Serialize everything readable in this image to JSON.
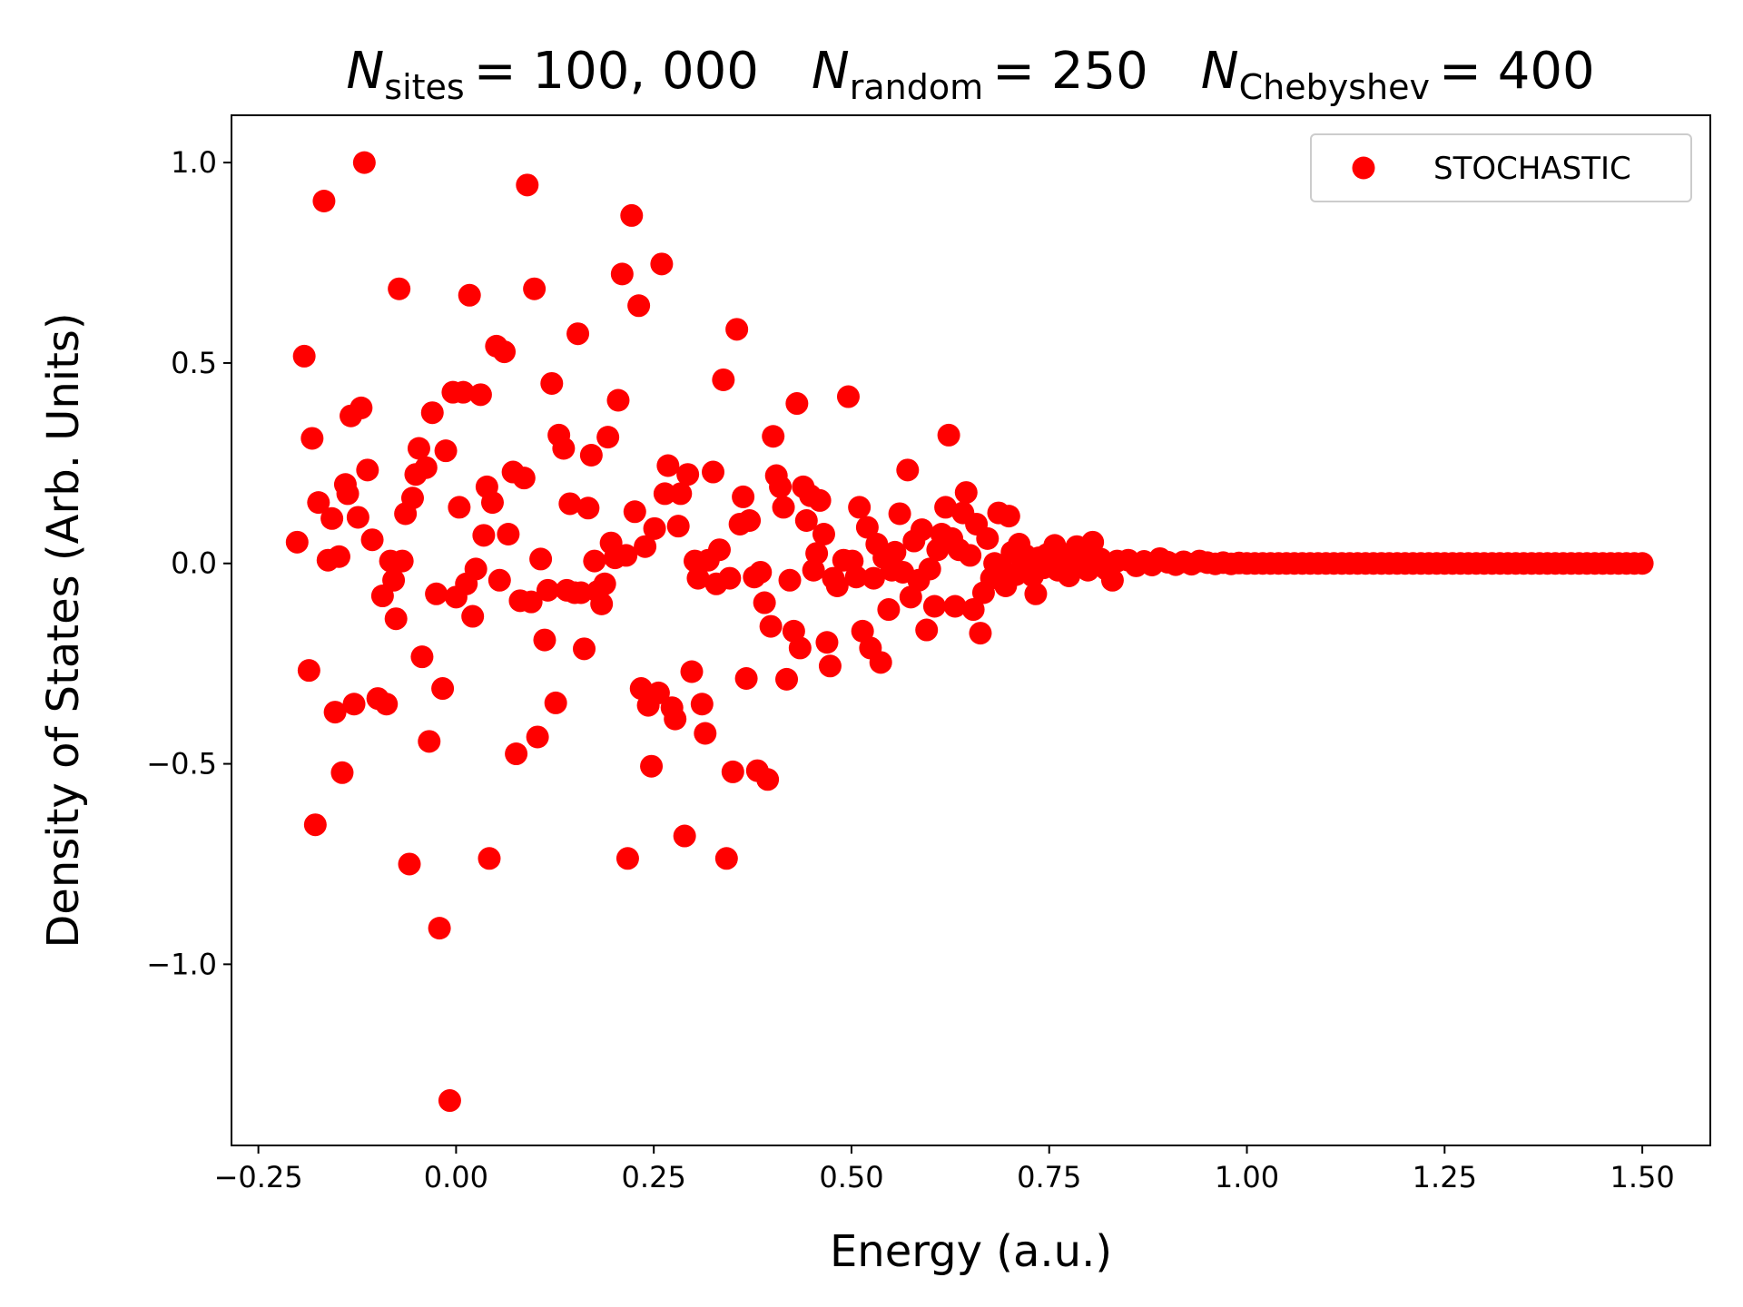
{
  "chart_data": {
    "type": "scatter",
    "title": [
      {
        "symbol": "N",
        "subscript": "sites",
        "value": "= 100, 000"
      },
      {
        "symbol": "N",
        "subscript": "random",
        "value": "= 250"
      },
      {
        "symbol": "N",
        "subscript": "Chebyshev",
        "value": "= 400"
      }
    ],
    "x_label": "Energy (a.u.)",
    "y_label": "Density of States (Arb. Units)",
    "xlim": [
      -0.284,
      1.586
    ],
    "ylim": [
      -1.452,
      1.118
    ],
    "xticks": [
      {
        "value": -0.25,
        "label": "−0.25"
      },
      {
        "value": 0,
        "label": "0.00"
      },
      {
        "value": 0.25,
        "label": "0.25"
      },
      {
        "value": 0.5,
        "label": "0.50"
      },
      {
        "value": 0.75,
        "label": "0.75"
      },
      {
        "value": 1,
        "label": "1.00"
      },
      {
        "value": 1.25,
        "label": "1.25"
      },
      {
        "value": 1.5,
        "label": "1.50"
      }
    ],
    "yticks": [
      {
        "value": -1,
        "label": "−1.0"
      },
      {
        "value": -0.5,
        "label": "−0.5"
      },
      {
        "value": 0,
        "label": "0.0"
      },
      {
        "value": 0.5,
        "label": "0.5"
      },
      {
        "value": 1,
        "label": "1.0"
      }
    ],
    "legend": "upper right",
    "grid": false,
    "series": [
      {
        "name": "STOCHASTIC",
        "color": "#ff0000",
        "x": [
          -0.201,
          -0.192,
          -0.186,
          -0.182,
          -0.178,
          -0.174,
          -0.167,
          -0.162,
          -0.157,
          -0.153,
          -0.148,
          -0.144,
          -0.14,
          -0.137,
          -0.133,
          -0.129,
          -0.124,
          -0.12,
          -0.116,
          -0.112,
          -0.106,
          -0.099,
          -0.093,
          -0.088,
          -0.083,
          -0.079,
          -0.076,
          -0.072,
          -0.068,
          -0.064,
          -0.059,
          -0.055,
          -0.051,
          -0.047,
          -0.043,
          -0.038,
          -0.034,
          -0.03,
          -0.025,
          -0.021,
          -0.017,
          -0.013,
          -0.008,
          -0.004,
          0.0,
          0.004,
          0.009,
          0.013,
          0.017,
          0.021,
          0.025,
          0.031,
          0.035,
          0.039,
          0.042,
          0.046,
          0.051,
          0.055,
          0.061,
          0.066,
          0.072,
          0.076,
          0.081,
          0.086,
          0.09,
          0.095,
          0.099,
          0.103,
          0.107,
          0.112,
          0.116,
          0.121,
          0.126,
          0.13,
          0.136,
          0.14,
          0.144,
          0.15,
          0.154,
          0.158,
          0.162,
          0.167,
          0.171,
          0.175,
          0.179,
          0.184,
          0.188,
          0.192,
          0.196,
          0.201,
          0.205,
          0.21,
          0.215,
          0.217,
          0.222,
          0.226,
          0.231,
          0.234,
          0.239,
          0.243,
          0.247,
          0.251,
          0.256,
          0.26,
          0.264,
          0.268,
          0.273,
          0.277,
          0.281,
          0.284,
          0.289,
          0.293,
          0.298,
          0.302,
          0.306,
          0.311,
          0.315,
          0.319,
          0.325,
          0.329,
          0.333,
          0.338,
          0.342,
          0.346,
          0.35,
          0.355,
          0.359,
          0.363,
          0.367,
          0.371,
          0.377,
          0.381,
          0.385,
          0.39,
          0.394,
          0.398,
          0.401,
          0.405,
          0.41,
          0.414,
          0.418,
          0.422,
          0.427,
          0.431,
          0.435,
          0.439,
          0.443,
          0.448,
          0.452,
          0.456,
          0.46,
          0.465,
          0.469,
          0.473,
          0.477,
          0.482,
          0.49,
          0.496,
          0.501,
          0.506,
          0.51,
          0.514,
          0.52,
          0.524,
          0.528,
          0.532,
          0.537,
          0.541,
          0.547,
          0.551,
          0.555,
          0.561,
          0.565,
          0.571,
          0.575,
          0.579,
          0.585,
          0.589,
          0.595,
          0.599,
          0.605,
          0.609,
          0.614,
          0.619,
          0.623,
          0.627,
          0.631,
          0.636,
          0.641,
          0.645,
          0.65,
          0.654,
          0.658,
          0.663,
          0.667,
          0.672,
          0.677,
          0.681,
          0.686,
          0.691,
          0.695,
          0.699,
          0.703,
          0.708,
          0.712,
          0.716,
          0.72,
          0.724,
          0.729,
          0.733,
          0.737,
          0.743,
          0.747,
          0.751,
          0.757,
          0.761,
          0.765,
          0.771,
          0.775,
          0.78,
          0.785,
          0.789,
          0.793,
          0.799,
          0.805,
          0.809,
          0.815,
          0.822,
          0.83,
          0.836,
          0.85,
          0.86,
          0.87,
          0.88,
          0.89,
          0.9,
          0.91,
          0.92,
          0.93,
          0.94,
          0.95,
          0.96,
          0.97,
          0.98,
          0.99,
          1.0,
          1.01,
          1.02,
          1.03,
          1.04,
          1.05,
          1.06,
          1.07,
          1.08,
          1.09,
          1.1,
          1.11,
          1.12,
          1.13,
          1.14,
          1.15,
          1.16,
          1.17,
          1.18,
          1.19,
          1.2,
          1.21,
          1.22,
          1.23,
          1.24,
          1.25,
          1.26,
          1.27,
          1.28,
          1.29,
          1.3,
          1.31,
          1.32,
          1.33,
          1.34,
          1.35,
          1.36,
          1.37,
          1.38,
          1.39,
          1.4,
          1.41,
          1.42,
          1.43,
          1.44,
          1.45,
          1.46,
          1.47,
          1.48,
          1.49,
          1.5
        ],
        "values": [
          0.053,
          0.517,
          -0.267,
          0.312,
          -0.652,
          0.152,
          0.904,
          0.008,
          0.112,
          -0.371,
          0.017,
          -0.522,
          0.197,
          0.174,
          0.368,
          -0.351,
          0.115,
          0.388,
          1.0,
          0.233,
          0.059,
          -0.337,
          -0.081,
          -0.351,
          0.006,
          -0.042,
          -0.138,
          0.685,
          0.006,
          0.124,
          -0.75,
          0.163,
          0.222,
          0.287,
          -0.233,
          0.239,
          -0.444,
          0.376,
          -0.076,
          -0.91,
          -0.312,
          0.281,
          -1.34,
          0.427,
          -0.084,
          0.14,
          0.427,
          -0.051,
          0.669,
          -0.132,
          -0.014,
          0.421,
          0.07,
          0.191,
          -0.736,
          0.152,
          0.542,
          -0.042,
          0.528,
          0.073,
          0.228,
          -0.475,
          -0.093,
          0.213,
          0.944,
          -0.096,
          0.685,
          -0.433,
          0.011,
          -0.191,
          -0.067,
          0.449,
          -0.348,
          0.32,
          0.287,
          -0.067,
          0.149,
          -0.073,
          0.573,
          -0.073,
          -0.213,
          0.138,
          0.27,
          0.006,
          -0.07,
          -0.101,
          -0.051,
          0.315,
          0.051,
          0.014,
          0.407,
          0.722,
          0.02,
          -0.736,
          0.868,
          0.129,
          0.643,
          -0.312,
          0.042,
          -0.354,
          -0.506,
          0.087,
          -0.323,
          0.747,
          0.174,
          0.244,
          -0.36,
          -0.388,
          0.093,
          0.174,
          -0.68,
          0.222,
          -0.27,
          0.006,
          -0.037,
          -0.351,
          -0.424,
          0.008,
          0.228,
          -0.051,
          0.034,
          0.458,
          -0.736,
          -0.037,
          -0.52,
          0.584,
          0.098,
          0.166,
          -0.287,
          0.107,
          -0.034,
          -0.517,
          -0.022,
          -0.098,
          -0.539,
          -0.157,
          0.317,
          0.219,
          0.191,
          0.14,
          -0.289,
          -0.042,
          -0.169,
          0.399,
          -0.211,
          0.191,
          0.107,
          0.169,
          -0.017,
          0.025,
          0.157,
          0.073,
          -0.197,
          -0.256,
          -0.037,
          -0.056,
          0.008,
          0.416,
          0.006,
          -0.034,
          0.14,
          -0.169,
          0.09,
          -0.211,
          -0.037,
          0.048,
          -0.247,
          0.014,
          -0.115,
          -0.017,
          0.028,
          0.124,
          -0.022,
          0.233,
          -0.084,
          0.056,
          -0.042,
          0.084,
          -0.166,
          -0.014,
          -0.107,
          0.034,
          0.073,
          0.14,
          0.32,
          0.062,
          -0.107,
          0.034,
          0.126,
          0.177,
          0.02,
          -0.115,
          0.098,
          -0.174,
          -0.073,
          0.062,
          -0.037,
          0.0,
          0.126,
          -0.017,
          -0.056,
          0.118,
          0.028,
          -0.028,
          0.048,
          -0.008,
          0.02,
          0.006,
          -0.031,
          -0.076,
          0.014,
          -0.011,
          0.022,
          -0.003,
          0.045,
          -0.017,
          0.014,
          0.0,
          -0.031,
          0.028,
          0.042,
          0.0,
          0.017,
          -0.017,
          0.053,
          0.0,
          0.011,
          -0.014,
          -0.042,
          0.006,
          0.008,
          -0.006,
          0.005,
          -0.004,
          0.012,
          0.003,
          -0.003,
          0.004,
          -0.002,
          0.006,
          0.002,
          -0.001,
          0.002,
          -0.001,
          0.001,
          0,
          0,
          0,
          0,
          0,
          0,
          0,
          0,
          0,
          0,
          0,
          0,
          0,
          0,
          0,
          0,
          0,
          0,
          0,
          0,
          0,
          0,
          0,
          0,
          0,
          0,
          0,
          0,
          0,
          0,
          0,
          0,
          0,
          0,
          0,
          0,
          0,
          0,
          0,
          0,
          0,
          0,
          0,
          0,
          0,
          0,
          0,
          0,
          0,
          0,
          0
        ]
      }
    ]
  }
}
